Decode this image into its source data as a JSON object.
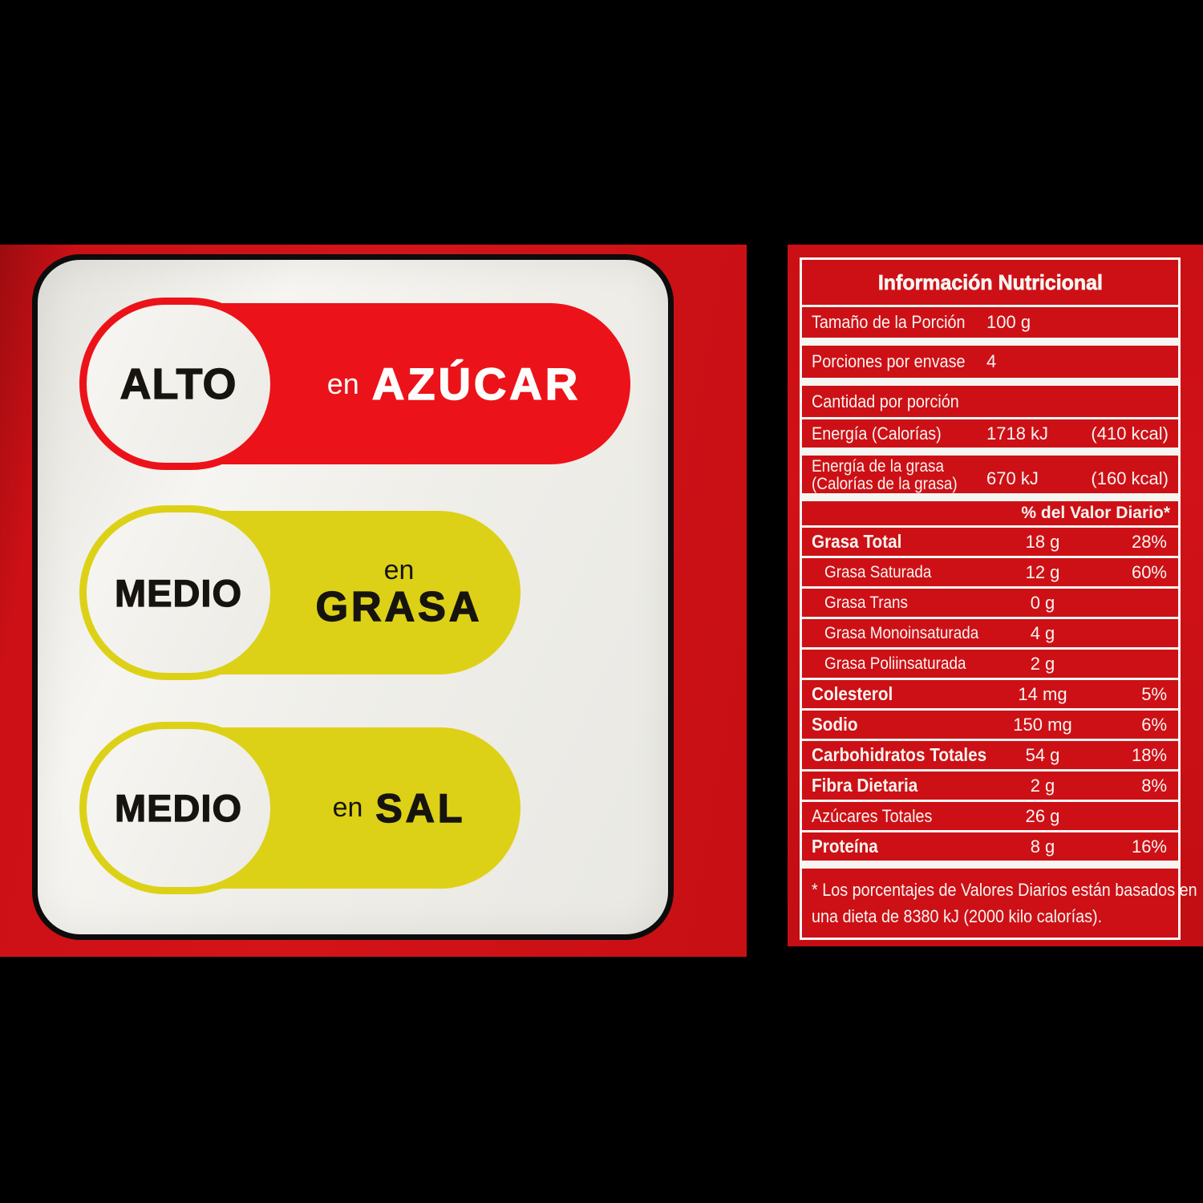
{
  "badges_panel": {
    "badges": [
      {
        "level": "ALTO",
        "prefix": "en",
        "nutrient": "AZÚCAR",
        "color": "#ec1219",
        "stacked": false
      },
      {
        "level": "MEDIO",
        "prefix": "en",
        "nutrient": "GRASA",
        "color": "#ddd117",
        "stacked": true
      },
      {
        "level": "MEDIO",
        "prefix": "en",
        "nutrient": "SAL",
        "color": "#ddd117",
        "stacked": false
      }
    ]
  },
  "nutrition": {
    "title": "Información Nutricional",
    "serving_rows": [
      {
        "label": "Tamaño de la Porción",
        "value": "100 g"
      },
      {
        "label": "Porciones por envase",
        "value": "4"
      }
    ],
    "amount_header": "Cantidad por porción",
    "energy_rows": [
      {
        "label": "Energía (Calorías)",
        "value": "1718 kJ",
        "kcal": "(410 kcal)"
      },
      {
        "label_line1": "Energía de la grasa",
        "label_line2": "(Calorías de la grasa)",
        "value": "670 kJ",
        "kcal": "(160 kcal)"
      }
    ],
    "dv_header": "% del Valor Diario*",
    "nutrient_rows": [
      {
        "name": "Grasa Total",
        "amount": "18 g",
        "dv": "28%",
        "bold": true,
        "indent": false
      },
      {
        "name": "Grasa Saturada",
        "amount": "12 g",
        "dv": "60%",
        "bold": false,
        "indent": true
      },
      {
        "name": "Grasa Trans",
        "amount": "0 g",
        "dv": "",
        "bold": false,
        "indent": true
      },
      {
        "name": "Grasa Monoinsaturada",
        "amount": "4 g",
        "dv": "",
        "bold": false,
        "indent": true
      },
      {
        "name": "Grasa Poliinsaturada",
        "amount": "2 g",
        "dv": "",
        "bold": false,
        "indent": true
      },
      {
        "name": "Colesterol",
        "amount": "14 mg",
        "dv": "5%",
        "bold": true,
        "indent": false
      },
      {
        "name": "Sodio",
        "amount": "150 mg",
        "dv": "6%",
        "bold": true,
        "indent": false
      },
      {
        "name": "Carbohidratos Totales",
        "amount": "54 g",
        "dv": "18%",
        "bold": true,
        "indent": false
      },
      {
        "name": "Fibra Dietaria",
        "amount": "2 g",
        "dv": "8%",
        "bold": true,
        "indent": false
      },
      {
        "name": "Azúcares Totales",
        "amount": "26 g",
        "dv": "",
        "bold": false,
        "indent": false
      },
      {
        "name": "Proteína",
        "amount": "8 g",
        "dv": "16%",
        "bold": true,
        "indent": false
      }
    ],
    "footnote_lines": [
      "* Los porcentajes de Valores Diarios están basados en",
      "una dieta de 8380 kJ (2000 kilo calorías)."
    ]
  },
  "colors": {
    "background_black": "#000000",
    "package_red": "#cc1016",
    "table_box_red": "#cd1016",
    "table_line_white": "#f7f5f1",
    "card_white": "#f1f0eb",
    "card_border_black": "#0c0c0c",
    "badge_red": "#ec1219",
    "badge_yellow": "#ddd117",
    "badge_text_black": "#17140f",
    "badge_text_white": "#fdfdfb"
  }
}
